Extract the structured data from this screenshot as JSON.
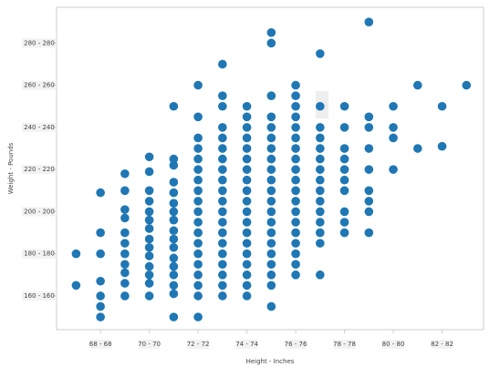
{
  "chart_data": {
    "type": "scatter",
    "x_label": "Height - Inches",
    "y_label": "Weight - Pounds",
    "xlim": [
      66.2,
      83.7
    ],
    "ylim": [
      144,
      297
    ],
    "xticks": [
      {
        "value": 68,
        "label": "68 - 68"
      },
      {
        "value": 70,
        "label": "70 - 70"
      },
      {
        "value": 72,
        "label": "72 - 72"
      },
      {
        "value": 74,
        "label": "74 - 74"
      },
      {
        "value": 76,
        "label": "76 - 76"
      },
      {
        "value": 78,
        "label": "78 - 78"
      },
      {
        "value": 80,
        "label": "80 - 80"
      },
      {
        "value": 82,
        "label": "82 - 82"
      }
    ],
    "yticks": [
      {
        "value": 160,
        "label": "160 - 160"
      },
      {
        "value": 180,
        "label": "180 - 180"
      },
      {
        "value": 200,
        "label": "200 - 200"
      },
      {
        "value": 220,
        "label": "220 - 220"
      },
      {
        "value": 240,
        "label": "240 - 240"
      },
      {
        "value": 260,
        "label": "260 - 260"
      },
      {
        "value": 280,
        "label": "280 - 280"
      }
    ],
    "series": [
      {
        "color": "#1f77b4",
        "x": [
          67,
          67,
          68,
          68,
          68,
          68,
          68,
          68,
          68,
          69,
          69,
          69,
          69,
          69,
          69,
          69,
          69,
          69,
          69,
          69,
          70,
          70,
          70,
          70,
          70,
          70,
          70,
          70,
          70,
          70,
          70,
          70,
          70,
          70,
          71,
          71,
          71,
          71,
          71,
          71,
          71,
          71,
          71,
          71,
          71,
          71,
          71,
          71,
          71,
          71,
          71,
          72,
          72,
          72,
          72,
          72,
          72,
          72,
          72,
          72,
          72,
          72,
          72,
          72,
          72,
          72,
          72,
          72,
          72,
          72,
          73,
          73,
          73,
          73,
          73,
          73,
          73,
          73,
          73,
          73,
          73,
          73,
          73,
          73,
          73,
          73,
          73,
          73,
          73,
          73,
          74,
          74,
          74,
          74,
          74,
          74,
          74,
          74,
          74,
          74,
          74,
          74,
          74,
          74,
          74,
          74,
          74,
          74,
          74,
          75,
          75,
          75,
          75,
          75,
          75,
          75,
          75,
          75,
          75,
          75,
          75,
          75,
          75,
          75,
          75,
          75,
          75,
          75,
          75,
          75,
          76,
          76,
          76,
          76,
          76,
          76,
          76,
          76,
          76,
          76,
          76,
          76,
          76,
          76,
          76,
          76,
          76,
          76,
          76,
          77,
          77,
          77,
          77,
          77,
          77,
          77,
          77,
          77,
          77,
          77,
          77,
          77,
          77,
          77,
          78,
          78,
          78,
          78,
          78,
          78,
          78,
          78,
          78,
          78,
          79,
          79,
          79,
          79,
          79,
          79,
          79,
          79,
          79,
          80,
          80,
          80,
          80,
          81,
          81,
          82,
          82,
          83
        ],
        "values": [
          180,
          165,
          209,
          190,
          180,
          167,
          160,
          155,
          150,
          218,
          210,
          201,
          197,
          190,
          185,
          180,
          175,
          171,
          166,
          160,
          226,
          219,
          210,
          205,
          200,
          196,
          192,
          187,
          183,
          179,
          174,
          170,
          166,
          160,
          250,
          225,
          222,
          214,
          209,
          204,
          200,
          196,
          191,
          187,
          183,
          178,
          174,
          170,
          165,
          161,
          150,
          260,
          245,
          235,
          230,
          225,
          220,
          215,
          210,
          205,
          200,
          195,
          190,
          185,
          180,
          175,
          170,
          165,
          160,
          150,
          270,
          255,
          250,
          240,
          235,
          230,
          225,
          220,
          215,
          210,
          205,
          200,
          195,
          190,
          185,
          180,
          175,
          170,
          165,
          160,
          250,
          245,
          240,
          235,
          230,
          225,
          220,
          215,
          210,
          205,
          200,
          195,
          190,
          185,
          180,
          175,
          170,
          165,
          160,
          285,
          280,
          255,
          245,
          240,
          235,
          230,
          225,
          220,
          215,
          210,
          205,
          200,
          195,
          190,
          185,
          180,
          175,
          170,
          165,
          155,
          260,
          255,
          250,
          245,
          240,
          235,
          230,
          225,
          220,
          215,
          210,
          205,
          200,
          195,
          190,
          185,
          180,
          175,
          170,
          275,
          250,
          240,
          235,
          230,
          225,
          220,
          215,
          210,
          205,
          200,
          195,
          190,
          185,
          170,
          250,
          240,
          230,
          225,
          220,
          215,
          210,
          200,
          195,
          190,
          290,
          245,
          240,
          230,
          220,
          210,
          205,
          200,
          190,
          250,
          240,
          235,
          220,
          260,
          230,
          250,
          231,
          260
        ]
      }
    ]
  }
}
